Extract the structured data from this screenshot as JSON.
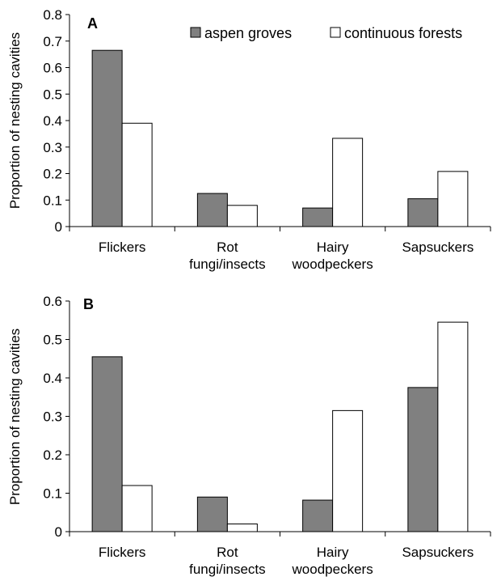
{
  "chart_data": [
    {
      "type": "bar",
      "panel_label": "A",
      "ylabel": "Proportion of nesting cavities",
      "ylim": [
        0,
        0.8
      ],
      "yticks": [
        "0",
        "0.1",
        "0.2",
        "0.3",
        "0.4",
        "0.5",
        "0.6",
        "0.7",
        "0.8"
      ],
      "categories": [
        [
          "Flickers"
        ],
        [
          "Rot",
          "fungi/insects"
        ],
        [
          "Hairy",
          "woodpeckers"
        ],
        [
          "Sapsuckers"
        ]
      ],
      "legend": "top-right",
      "series": [
        {
          "name": "aspen groves",
          "color": "#808080",
          "values": [
            0.665,
            0.125,
            0.07,
            0.105
          ]
        },
        {
          "name": "continuous forests",
          "color": "#ffffff",
          "values": [
            0.39,
            0.08,
            0.333,
            0.208
          ]
        }
      ]
    },
    {
      "type": "bar",
      "panel_label": "B",
      "ylabel": "Proportion of nesting cavities",
      "ylim": [
        0,
        0.6
      ],
      "yticks": [
        "0",
        "0.1",
        "0.2",
        "0.3",
        "0.4",
        "0.5",
        "0.6"
      ],
      "categories": [
        [
          "Flickers"
        ],
        [
          "Rot",
          "fungi/insects"
        ],
        [
          "Hairy",
          "woodpeckers"
        ],
        [
          "Sapsuckers"
        ]
      ],
      "series": [
        {
          "name": "aspen groves",
          "color": "#808080",
          "values": [
            0.455,
            0.09,
            0.082,
            0.375
          ]
        },
        {
          "name": "continuous forests",
          "color": "#ffffff",
          "values": [
            0.12,
            0.02,
            0.315,
            0.545
          ]
        }
      ]
    }
  ]
}
